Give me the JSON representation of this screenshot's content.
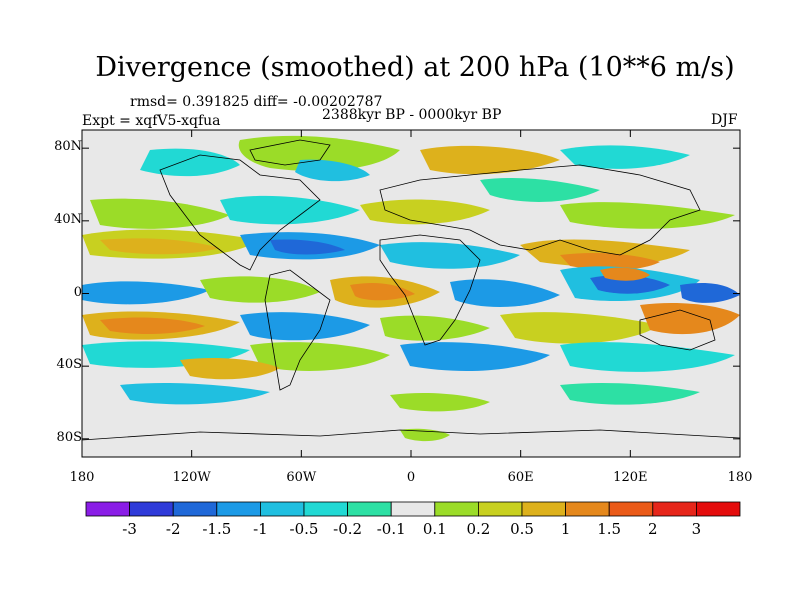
{
  "title": "Divergence (smoothed) at 200 hPa (10**6 m/s)",
  "stats": "rmsd= 0.391825 diff= -0.00202787",
  "experiment": "Expt = xqfV5-xqfua",
  "period": "2388kyr BP - 0000kyr BP",
  "season": "DJF",
  "map": {
    "y_ticks": [
      {
        "lat": 80,
        "label": "80N"
      },
      {
        "lat": 40,
        "label": "40N"
      },
      {
        "lat": 0,
        "label": "0"
      },
      {
        "lat": -40,
        "label": "40S"
      },
      {
        "lat": -80,
        "label": "80S"
      }
    ],
    "x_ticks": [
      {
        "lon": -180,
        "label": "180"
      },
      {
        "lon": -120,
        "label": "120W"
      },
      {
        "lon": -60,
        "label": "60W"
      },
      {
        "lon": 0,
        "label": "0"
      },
      {
        "lon": 60,
        "label": "60E"
      },
      {
        "lon": 120,
        "label": "120E"
      },
      {
        "lon": 180,
        "label": "180"
      }
    ],
    "background_color": "#e8e8e8"
  },
  "colorbar": {
    "labels": [
      "-3",
      "-2",
      "-1.5",
      "-1",
      "-0.5",
      "-0.2",
      "-0.1",
      "0.1",
      "0.2",
      "0.5",
      "1",
      "1.5",
      "2",
      "3"
    ],
    "colors": [
      "#8a1de6",
      "#2f3bd9",
      "#1f68d8",
      "#1c9ae6",
      "#20bfe0",
      "#21d9d4",
      "#2de0a4",
      "#e8e8e8",
      "#9bdc28",
      "#c8d020",
      "#ddb11c",
      "#e5881c",
      "#ea5a18",
      "#e6261a",
      "#e40c0c"
    ]
  }
}
